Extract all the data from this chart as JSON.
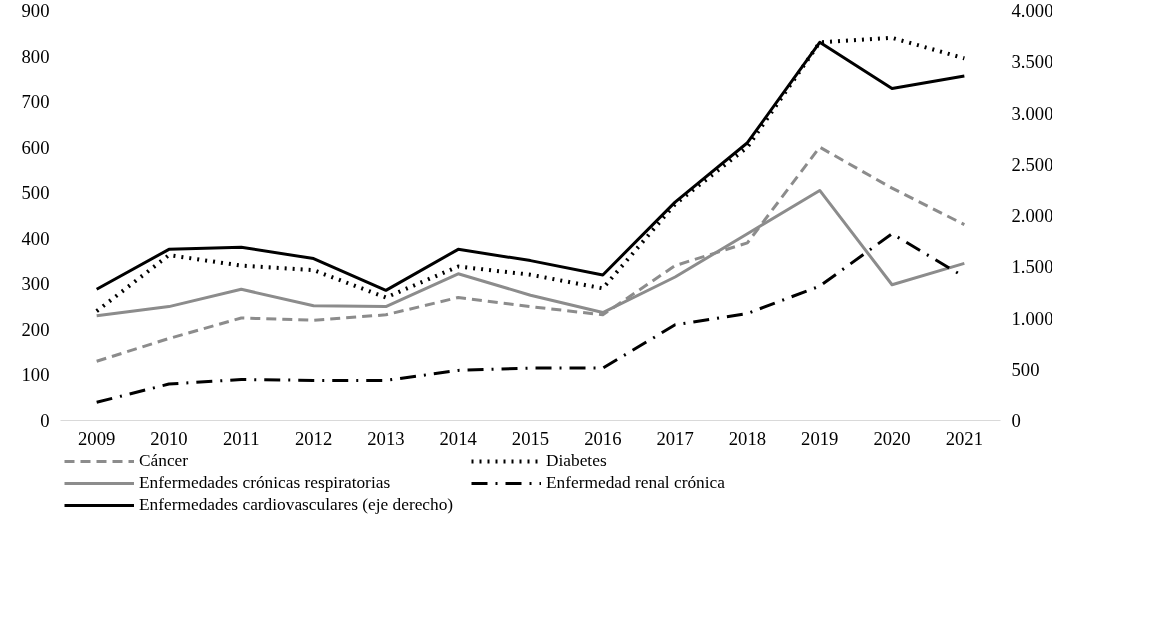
{
  "chart_data": {
    "type": "line",
    "categories": [
      "2009",
      "2010",
      "2011",
      "2012",
      "2013",
      "2014",
      "2015",
      "2016",
      "2017",
      "2018",
      "2019",
      "2020",
      "2021"
    ],
    "ylim": [
      0,
      900
    ],
    "yticks": [
      0,
      100,
      200,
      300,
      400,
      500,
      600,
      700,
      800,
      900
    ],
    "y2lim": [
      0,
      4000
    ],
    "y2ticks": [
      {
        "value": 0,
        "label": "0"
      },
      {
        "value": 500,
        "label": "500"
      },
      {
        "value": 1000,
        "label": "1.000"
      },
      {
        "value": 1500,
        "label": "1.500"
      },
      {
        "value": 2000,
        "label": "2.000"
      },
      {
        "value": 2500,
        "label": "2.500"
      },
      {
        "value": 3000,
        "label": "3.000"
      },
      {
        "value": 3500,
        "label": "3.500"
      },
      {
        "value": 4000,
        "label": "4.000"
      }
    ],
    "grid": false,
    "legend": "bottom",
    "marker": "none",
    "series": [
      {
        "name": "Cáncer",
        "color": "#8c8c8c",
        "line_style": "dashed",
        "values": [
          130,
          180,
          225,
          220,
          232,
          270,
          250,
          232,
          340,
          390,
          600,
          510,
          430
        ]
      },
      {
        "name": "Diabetes",
        "color": "#000000",
        "line_style": "dotted",
        "values": [
          240,
          363,
          340,
          330,
          270,
          338,
          320,
          290,
          475,
          600,
          830,
          840,
          795
        ]
      },
      {
        "name": "Enfermedades crónicas respiratorias",
        "color": "#8c8c8c",
        "line_style": "solid",
        "values": [
          230,
          250,
          288,
          252,
          250,
          322,
          275,
          237,
          315,
          410,
          505,
          298,
          345
        ]
      },
      {
        "name": "Enfermedad renal crónica",
        "color": "#000000",
        "line_style": "dashdot",
        "values": [
          40,
          80,
          90,
          88,
          88,
          110,
          115,
          115,
          210,
          235,
          295,
          410,
          315
        ]
      },
      {
        "name": "Enfermedades cardiovasculares (eje derecho)",
        "color": "#000000",
        "line_style": "solid",
        "axis": "y2",
        "values": [
          1280,
          1670,
          1690,
          1580,
          1270,
          1670,
          1560,
          1420,
          2130,
          2710,
          3690,
          3240,
          3360
        ]
      }
    ]
  }
}
